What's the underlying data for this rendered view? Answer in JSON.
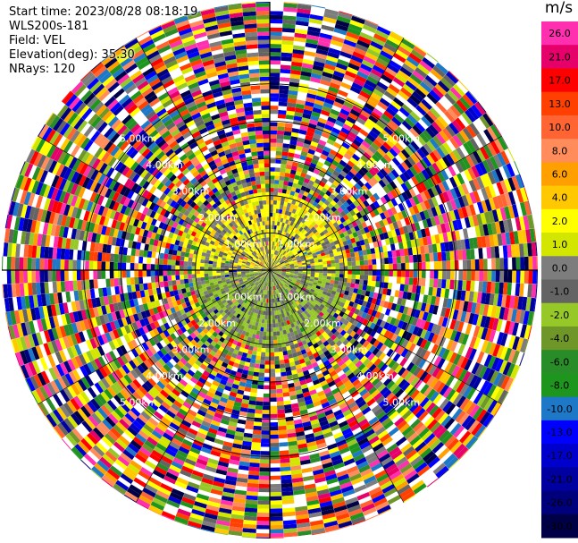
{
  "info": {
    "start_time": "Start time: 2023/08/28 08:18:19",
    "instrument": "WLS200s-181",
    "field": "Field: VEL",
    "elevation": "Elevation(deg): 35.30",
    "nrays": "NRays: 120"
  },
  "chart_data": {
    "type": "heatmap",
    "projection": "polar-ppi",
    "field": "VEL",
    "elevation_deg": 35.3,
    "nrays": 120,
    "range_ring_labels": [
      "1.00km",
      "2.00km",
      "3.00km",
      "4.00km",
      "5.00km"
    ],
    "range_rings_km": [
      1,
      2,
      3,
      4,
      5
    ],
    "max_range_km": 7.2,
    "colorbar": {
      "unit": "m/s",
      "tick_labels": [
        "26.0",
        "21.0",
        "17.0",
        "13.0",
        "10.0",
        "8.0",
        "6.0",
        "4.0",
        "2.0",
        "1.0",
        "0.0",
        "-1.0",
        "-2.0",
        "-4.0",
        "-6.0",
        "-8.0",
        "-10.0",
        "-13.0",
        "-17.0",
        "-21.0",
        "-26.0",
        "-30.0"
      ],
      "bin_colors": [
        "#ff2fb0",
        "#e6006a",
        "#ff0000",
        "#ff4000",
        "#ff6432",
        "#ff8c5a",
        "#ffa000",
        "#ffc800",
        "#ffff00",
        "#d2e600",
        "#7d7d7d",
        "#646464",
        "#96c828",
        "#6e9628",
        "#288c28",
        "#1e961e",
        "#1e78c8",
        "#0000ff",
        "#0000cd",
        "#0000a0",
        "#00007d",
        "#000046"
      ]
    }
  }
}
